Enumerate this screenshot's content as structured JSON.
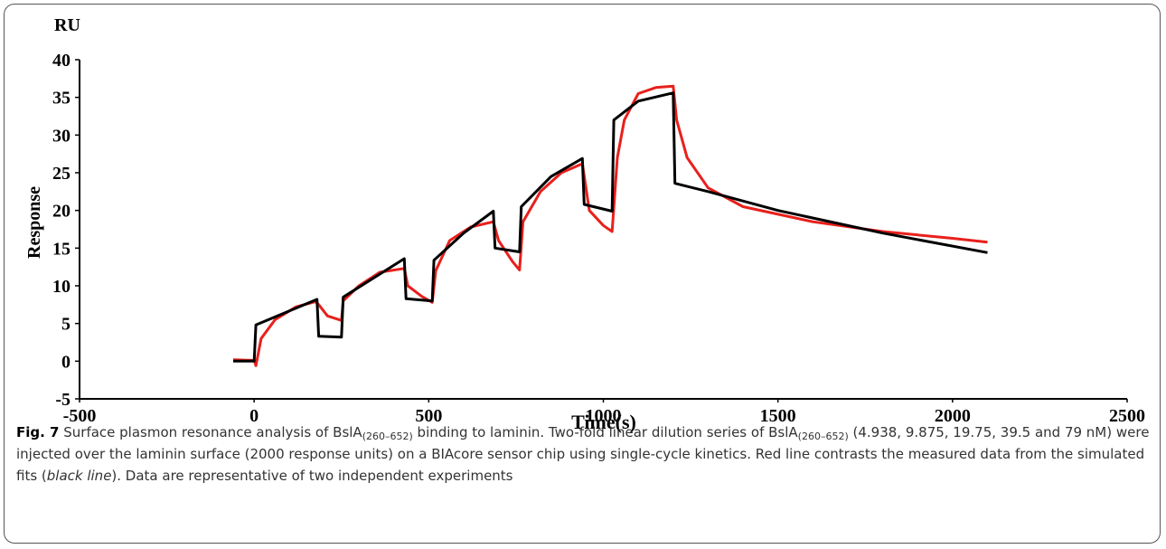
{
  "chart_data": {
    "type": "line",
    "y_unit": "RU",
    "ylabel": "Response",
    "xlabel": "Time(s)",
    "xlim": [
      -500,
      2500
    ],
    "xticks": [
      -500,
      0,
      500,
      1000,
      1500,
      2000,
      2500
    ],
    "ylim": [
      -5,
      40
    ],
    "yticks": [
      -5,
      0,
      5,
      10,
      15,
      20,
      25,
      30,
      35,
      40
    ],
    "series": [
      {
        "color": "#e8201c",
        "x": [
          -60,
          0,
          5,
          20,
          60,
          120,
          175,
          185,
          210,
          250,
          255,
          300,
          360,
          430,
          440,
          480,
          510,
          520,
          560,
          620,
          685,
          700,
          740,
          760,
          770,
          820,
          880,
          940,
          960,
          1000,
          1025,
          1040,
          1060,
          1100,
          1150,
          1200,
          1210,
          1240,
          1300,
          1400,
          1600,
          1800,
          2000,
          2100
        ],
        "values": [
          0.2,
          0.1,
          -0.6,
          3,
          5.5,
          7.2,
          7.9,
          7.5,
          6,
          5.4,
          8,
          10,
          11.8,
          12.3,
          10,
          8.6,
          7.8,
          12,
          16,
          17.8,
          18.5,
          16,
          13.2,
          12.1,
          18.5,
          22.5,
          25,
          26.2,
          20,
          18,
          17.2,
          27,
          32,
          35.5,
          36.3,
          36.5,
          32,
          27,
          23,
          20.5,
          18.5,
          17.2,
          16.3,
          15.8
        ]
      },
      {
        "color": "#000000",
        "x": [
          -60,
          0,
          5,
          180,
          185,
          250,
          255,
          430,
          435,
          510,
          515,
          600,
          685,
          690,
          760,
          765,
          850,
          940,
          945,
          1025,
          1030,
          1100,
          1200,
          1205,
          1300,
          1500,
          1800,
          2100
        ],
        "values": [
          0,
          0,
          4.8,
          8.2,
          3.3,
          3.2,
          8.5,
          13.6,
          8.3,
          8.0,
          13.4,
          17,
          19.9,
          15,
          14.5,
          20.5,
          24.5,
          26.9,
          20.8,
          19.9,
          32,
          34.5,
          35.6,
          23.6,
          22.5,
          20,
          17,
          14.4
        ]
      }
    ]
  },
  "caption": {
    "label": "Fig. 7",
    "parts": [
      {
        "text": " Surface plasmon resonance analysis of BslA",
        "style": "normal"
      },
      {
        "text": "(260–652)",
        "style": "sub"
      },
      {
        "text": " binding to laminin. Two-fold linear dilution series of BslA",
        "style": "normal"
      },
      {
        "text": "(260–652)",
        "style": "sub"
      },
      {
        "text": " (4.938, 9.875, 19.75, 39.5 and 79 nM) were injected over the laminin surface (2000 response units) on a BIAcore sensor chip using single-cycle kinetics. Red line contrasts the measured data from the simulated fits (",
        "style": "normal"
      },
      {
        "text": "black line",
        "style": "italic"
      },
      {
        "text": "). Data are representative of two independent experiments",
        "style": "normal"
      }
    ]
  }
}
